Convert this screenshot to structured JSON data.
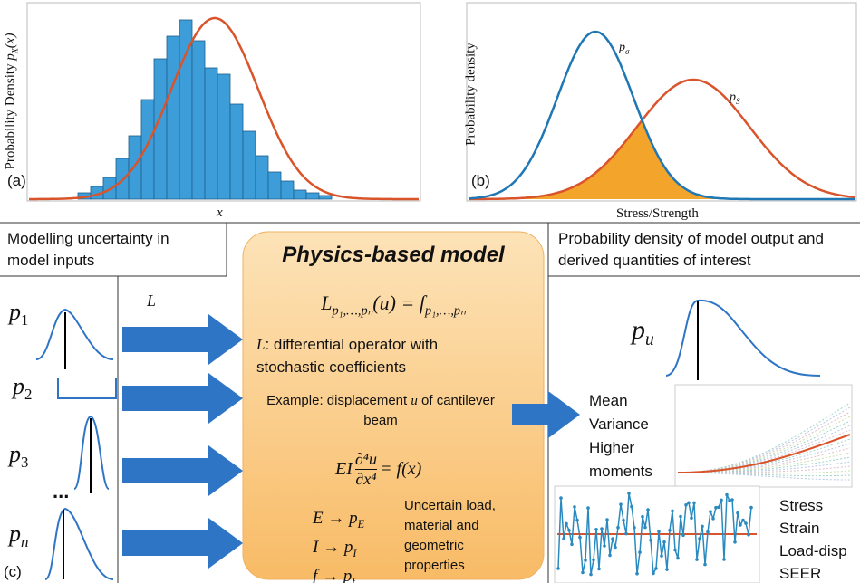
{
  "panel_a": {
    "label": "(a)",
    "y_label": "Probability Density ",
    "y_label_var": "p",
    "y_label_sub": "X",
    "y_label_arg": "(x)",
    "x_label": "x"
  },
  "panel_b": {
    "label": "(b)",
    "y_label": "Probability density",
    "x_label": "Stress/Strength",
    "curve_1_var": "p",
    "curve_1_sub": "σ",
    "curve_2_var": "p",
    "curve_2_sub": "S"
  },
  "inputs": {
    "title": "Modelling uncertainty in model inputs",
    "items": [
      {
        "var": "p",
        "sub": "1"
      },
      {
        "var": "p",
        "sub": "2"
      },
      {
        "var": "p",
        "sub": "3"
      },
      {
        "var": "p",
        "sub": "n"
      }
    ],
    "ellipsis": "...",
    "operator": "L",
    "label": "(c)"
  },
  "model": {
    "title": "Physics-based model",
    "equation": {
      "lhs": "L",
      "lhs_sub": "p₁,…,pₙ",
      "middle": "(u) = f",
      "rhs_sub": "p₁,…,pₙ"
    },
    "operator_var": "L",
    "operator_desc": ": differential operator with stochastic coefficients",
    "example_prefix": "Example: displacement ",
    "example_var": "u",
    "example_suffix": " of cantilever beam",
    "beam_equation": {
      "factor": "EI",
      "numerator": "∂⁴u",
      "denominator": "∂x⁴",
      "rhs": "= f(x)"
    },
    "mappings": [
      {
        "text": "E → p",
        "sub": "E"
      },
      {
        "text": "I → p",
        "sub": "I"
      },
      {
        "text": "f → p",
        "sub": "f"
      }
    ],
    "mapping_note": "Uncertain load, material and geometric properties"
  },
  "outputs": {
    "title": "Probability density of model output and derived quantities of interest",
    "density_var": "p",
    "density_sub": "u",
    "moments": [
      "Mean",
      "Variance",
      "Higher",
      "moments"
    ],
    "quantities": [
      "Stress",
      "Strain",
      "Load-disp",
      "SEER"
    ]
  }
}
